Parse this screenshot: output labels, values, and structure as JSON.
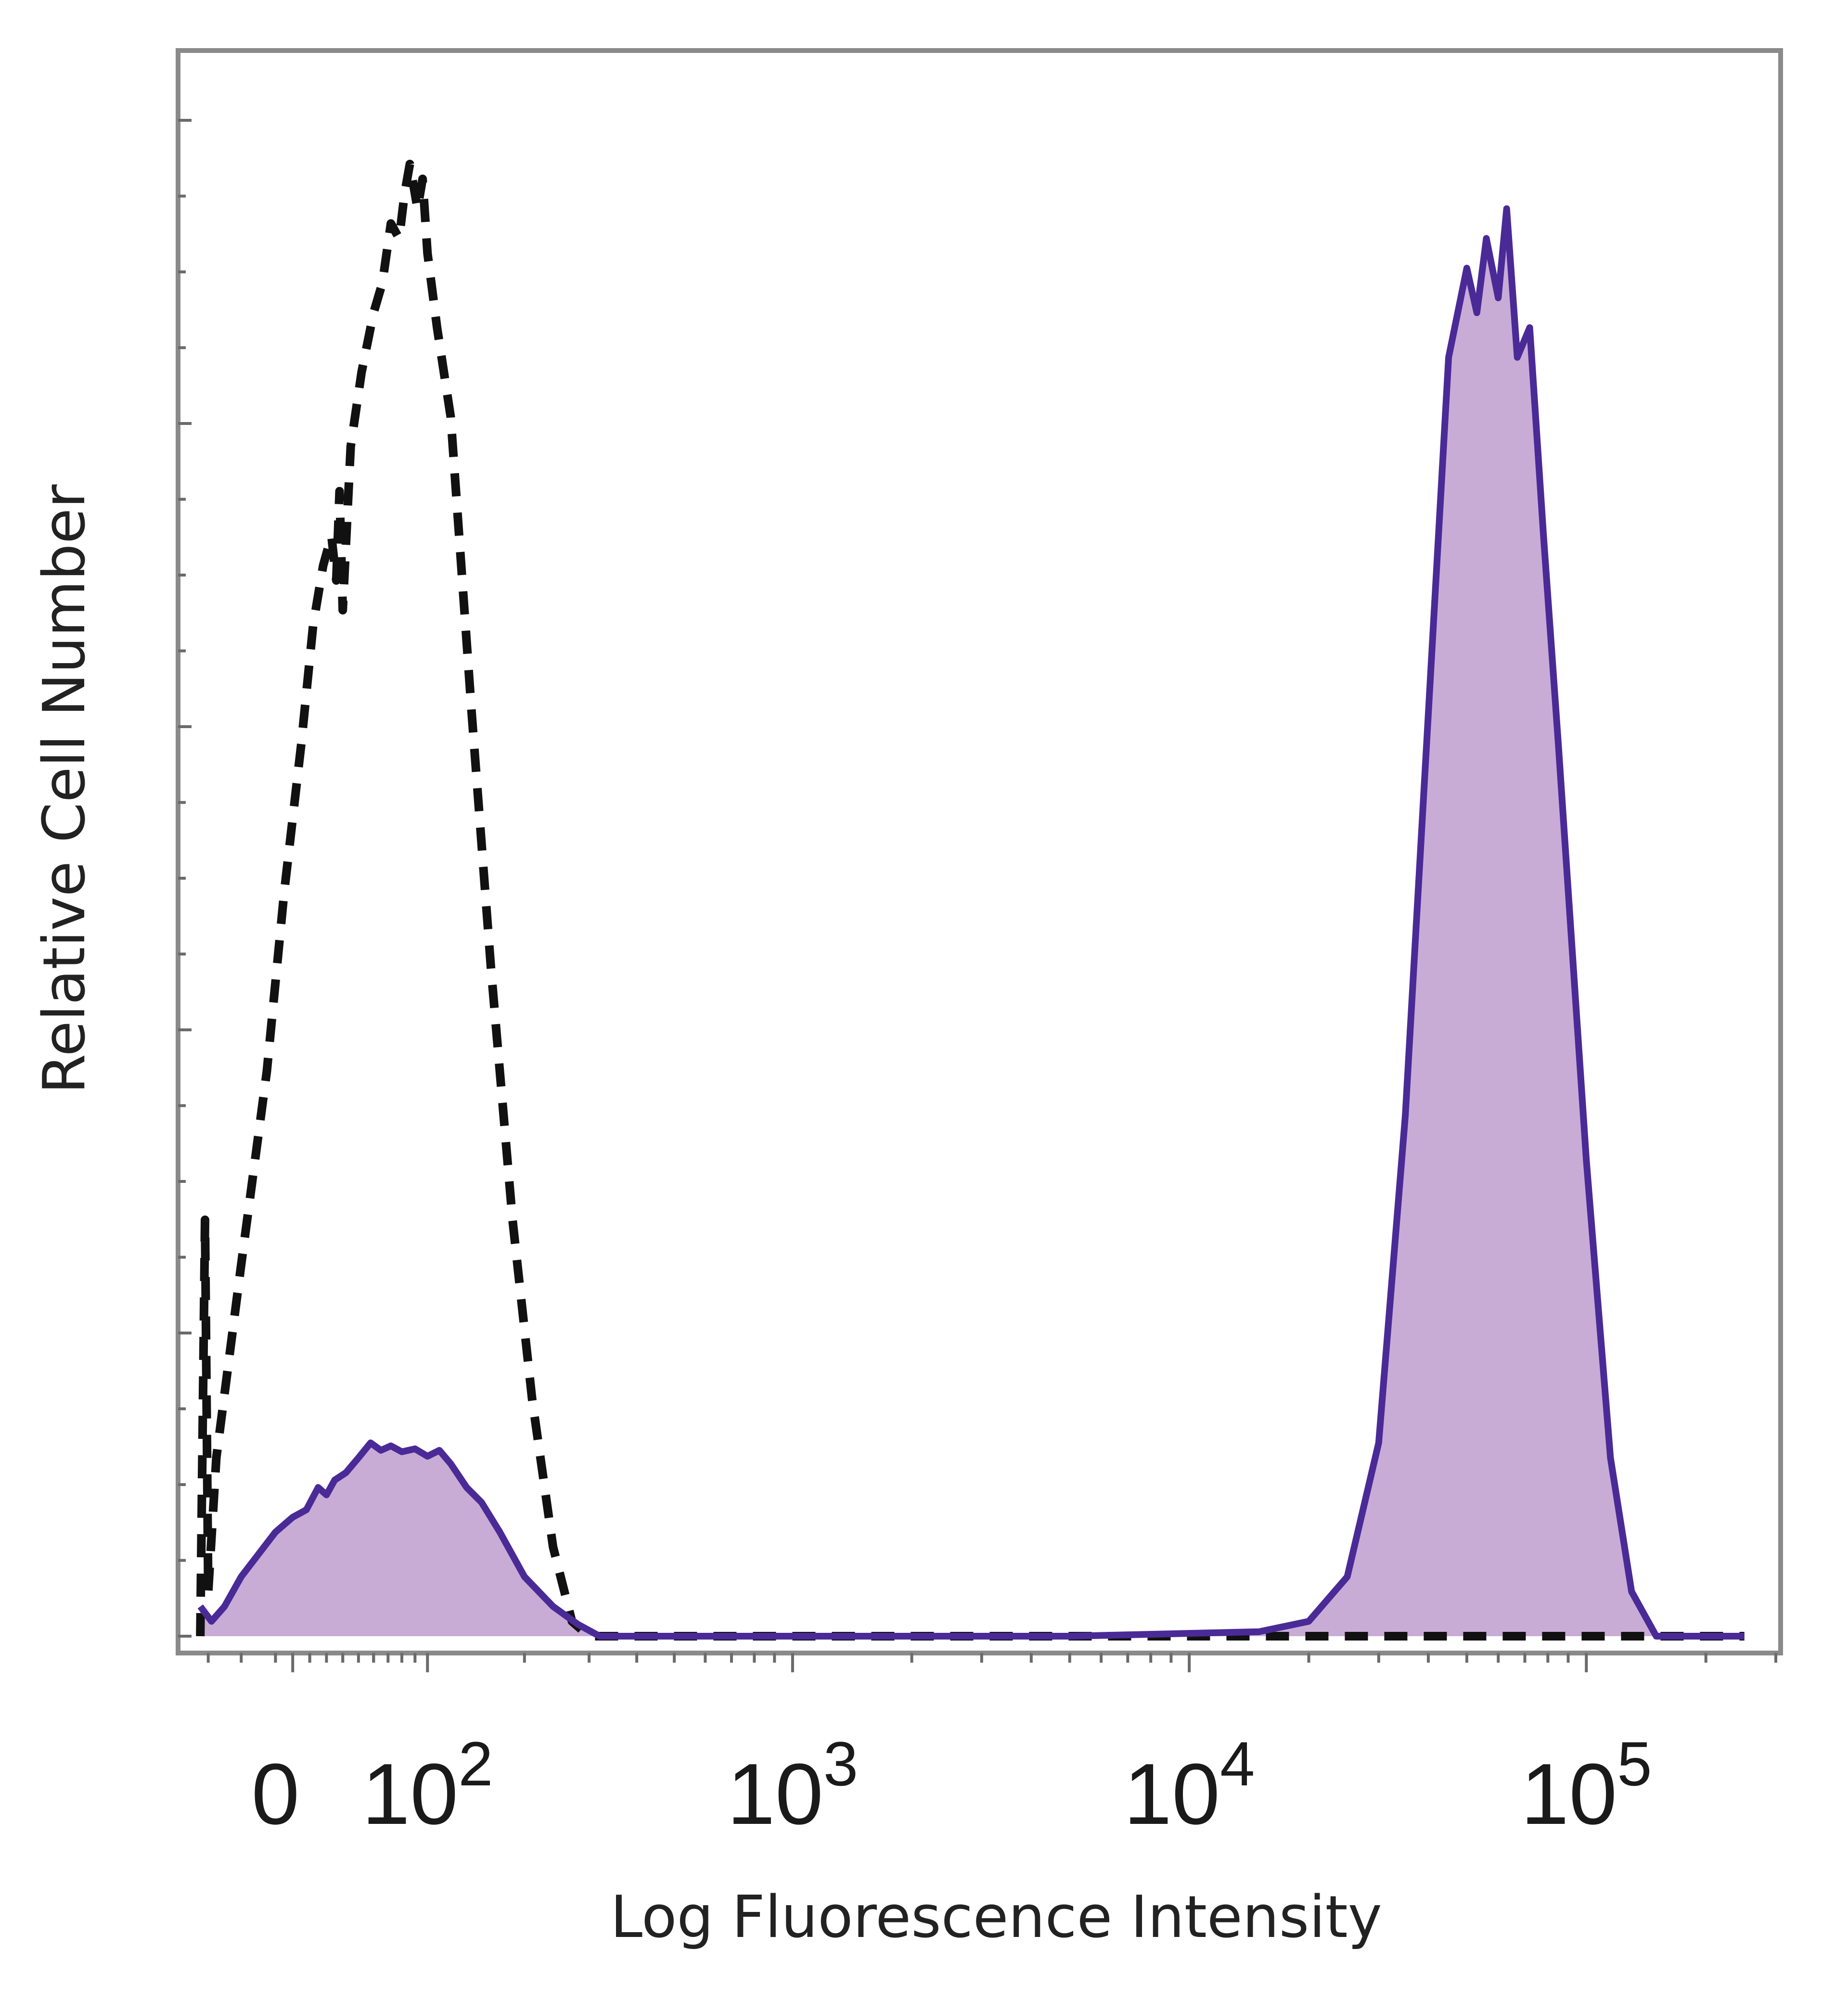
{
  "chart_data": {
    "type": "area",
    "title": "",
    "xlabel": "Log Fluorescence Intensity",
    "ylabel": "Relative Cell Number",
    "x_scale": "biexponential",
    "xlim": [
      -50,
      300000
    ],
    "ylim": [
      0,
      1.05
    ],
    "grid": false,
    "legend": "none",
    "x_ticks": [
      {
        "value": 0,
        "base": "0",
        "exp": ""
      },
      {
        "value": 100,
        "base": "10",
        "exp": "2"
      },
      {
        "value": 1000,
        "base": "10",
        "exp": "3"
      },
      {
        "value": 10000,
        "base": "10",
        "exp": "4"
      },
      {
        "value": 100000,
        "base": "10",
        "exp": "5"
      }
    ],
    "series": [
      {
        "style": "dashed",
        "color": "#111111",
        "fill": "none",
        "points": [
          [
            -45,
            0.0
          ],
          [
            -42,
            0.28
          ],
          [
            -40,
            0.03
          ],
          [
            -35,
            0.12
          ],
          [
            -20,
            0.25
          ],
          [
            -5,
            0.38
          ],
          [
            5,
            0.5
          ],
          [
            15,
            0.6
          ],
          [
            22,
            0.68
          ],
          [
            28,
            0.72
          ],
          [
            33,
            0.74
          ],
          [
            36,
            0.71
          ],
          [
            38,
            0.77
          ],
          [
            40,
            0.69
          ],
          [
            45,
            0.8
          ],
          [
            52,
            0.85
          ],
          [
            60,
            0.89
          ],
          [
            66,
            0.91
          ],
          [
            72,
            0.95
          ],
          [
            78,
            0.94
          ],
          [
            82,
            0.97
          ],
          [
            86,
            0.99
          ],
          [
            92,
            0.96
          ],
          [
            96,
            0.98
          ],
          [
            100,
            0.93
          ],
          [
            108,
            0.88
          ],
          [
            120,
            0.82
          ],
          [
            140,
            0.62
          ],
          [
            160,
            0.45
          ],
          [
            185,
            0.28
          ],
          [
            210,
            0.16
          ],
          [
            240,
            0.06
          ],
          [
            270,
            0.01
          ],
          [
            300,
            0.0
          ],
          [
            1000,
            0.0
          ],
          [
            10000,
            0.0
          ],
          [
            100000,
            0.0
          ],
          [
            250000,
            0.0
          ]
        ]
      },
      {
        "style": "solid",
        "color": "#4a2a96",
        "fill": "#c9acd6",
        "points": [
          [
            -45,
            0.02
          ],
          [
            -38,
            0.01
          ],
          [
            -30,
            0.02
          ],
          [
            -20,
            0.04
          ],
          [
            -10,
            0.055
          ],
          [
            0,
            0.07
          ],
          [
            10,
            0.08
          ],
          [
            18,
            0.085
          ],
          [
            25,
            0.1
          ],
          [
            30,
            0.095
          ],
          [
            35,
            0.105
          ],
          [
            42,
            0.11
          ],
          [
            50,
            0.12
          ],
          [
            58,
            0.13
          ],
          [
            65,
            0.125
          ],
          [
            72,
            0.128
          ],
          [
            80,
            0.124
          ],
          [
            90,
            0.126
          ],
          [
            100,
            0.121
          ],
          [
            110,
            0.125
          ],
          [
            120,
            0.116
          ],
          [
            135,
            0.1
          ],
          [
            150,
            0.09
          ],
          [
            170,
            0.07
          ],
          [
            200,
            0.04
          ],
          [
            240,
            0.02
          ],
          [
            280,
            0.008
          ],
          [
            320,
            0.0
          ],
          [
            1000,
            0.0
          ],
          [
            5000,
            0.0
          ],
          [
            15000,
            0.003
          ],
          [
            20000,
            0.01
          ],
          [
            25000,
            0.04
          ],
          [
            30000,
            0.13
          ],
          [
            35000,
            0.35
          ],
          [
            40000,
            0.62
          ],
          [
            45000,
            0.86
          ],
          [
            50000,
            0.92
          ],
          [
            53000,
            0.89
          ],
          [
            56000,
            0.94
          ],
          [
            60000,
            0.9
          ],
          [
            63000,
            0.96
          ],
          [
            67000,
            0.86
          ],
          [
            72000,
            0.88
          ],
          [
            78000,
            0.74
          ],
          [
            85000,
            0.6
          ],
          [
            100000,
            0.32
          ],
          [
            115000,
            0.12
          ],
          [
            130000,
            0.03
          ],
          [
            150000,
            0.0
          ],
          [
            250000,
            0.0
          ]
        ]
      }
    ]
  }
}
